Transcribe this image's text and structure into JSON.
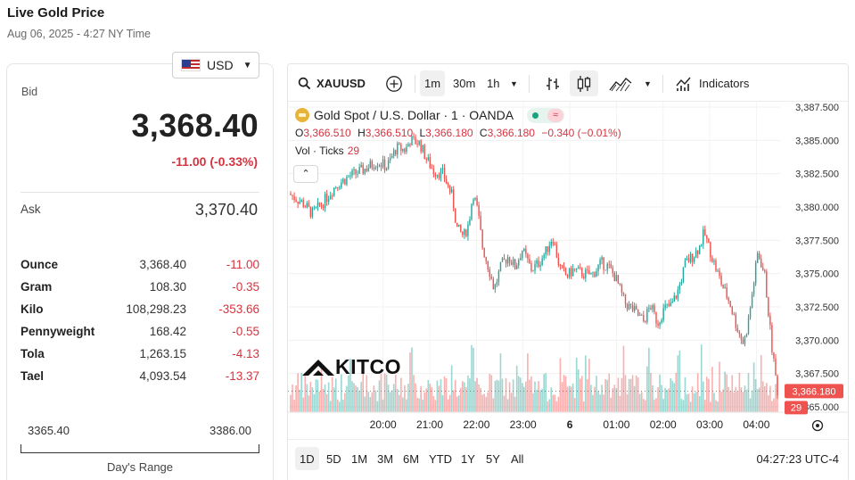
{
  "header": {
    "title": "Live Gold Price",
    "timestamp": "Aug 06, 2025 - 4:27 NY Time"
  },
  "currency": {
    "selected": "USD",
    "flag_icon": "us-flag-icon"
  },
  "quote": {
    "bid_label": "Bid",
    "bid": "3,368.40",
    "change": "-11.00 (-0.33%)",
    "ask_label": "Ask",
    "ask": "3,370.40"
  },
  "units": [
    {
      "name": "Ounce",
      "price": "3,368.40",
      "change": "-11.00"
    },
    {
      "name": "Gram",
      "price": "108.30",
      "change": "-0.35"
    },
    {
      "name": "Kilo",
      "price": "108,298.23",
      "change": "-353.66"
    },
    {
      "name": "Pennyweight",
      "price": "168.42",
      "change": "-0.55"
    },
    {
      "name": "Tola",
      "price": "1,263.15",
      "change": "-4.13"
    },
    {
      "name": "Tael",
      "price": "4,093.54",
      "change": "-13.37"
    }
  ],
  "day_range": {
    "low": "3365.40",
    "high": "3386.00",
    "label": "Day's Range"
  },
  "toolbar": {
    "symbol": "XAUUSD",
    "intervals": [
      "1m",
      "30m",
      "1h"
    ],
    "active_interval": "1m",
    "indicators_label": "Indicators"
  },
  "legend": {
    "title": "Gold Spot / U.S. Dollar · 1 · OANDA",
    "o_label": "O",
    "o": "3,366.510",
    "h_label": "H",
    "h": "3,366.510",
    "l_label": "L",
    "l": "3,366.180",
    "c_label": "C",
    "c": "3,366.180",
    "change": "−0.340 (−0.01%)",
    "vol_label": "Vol · Ticks",
    "vol_value": "29"
  },
  "brand": {
    "logo_text": "KITCO"
  },
  "range_buttons": [
    "1D",
    "5D",
    "1M",
    "3M",
    "6M",
    "YTD",
    "1Y",
    "5Y",
    "All"
  ],
  "active_range": "1D",
  "clock": "04:27:23 UTC-4",
  "chart_data": {
    "type": "candlestick",
    "title": "Gold Spot / U.S. Dollar · 1 · OANDA",
    "symbol": "XAUUSD",
    "xlabel": "",
    "ylabel": "",
    "ylim": [
      3364.6,
      3387.9
    ],
    "y_ticks": [
      "3,387.500",
      "3,385.000",
      "3,382.500",
      "3,380.000",
      "3,377.500",
      "3,375.000",
      "3,372.500",
      "3,370.000",
      "3,367.500",
      "3,365.000"
    ],
    "y_tick_values": [
      3387.5,
      3385.0,
      3382.5,
      3380.0,
      3377.5,
      3375.0,
      3372.5,
      3370.0,
      3367.5,
      3365.0
    ],
    "x_ticks": [
      "20:00",
      "21:00",
      "22:00",
      "23:00",
      "6",
      "01:00",
      "02:00",
      "03:00",
      "04:00"
    ],
    "x_tick_hours": [
      20,
      21,
      22,
      23,
      24,
      25,
      26,
      27,
      28
    ],
    "x_range_hours": [
      18.0,
      28.47
    ],
    "last_price": "3,366.180",
    "last_price_value": 3366.18,
    "last_volume": "29",
    "price_path": [
      [
        18.0,
        3381.0
      ],
      [
        18.3,
        3380.3
      ],
      [
        18.5,
        3379.5
      ],
      [
        18.7,
        3380.2
      ],
      [
        19.0,
        3381.6
      ],
      [
        19.3,
        3382.3
      ],
      [
        19.6,
        3382.8
      ],
      [
        19.9,
        3383.4
      ],
      [
        20.1,
        3383.0
      ],
      [
        20.3,
        3384.4
      ],
      [
        20.5,
        3384.3
      ],
      [
        20.6,
        3385.0
      ],
      [
        20.8,
        3384.8
      ],
      [
        20.95,
        3383.6
      ],
      [
        21.1,
        3382.7
      ],
      [
        21.3,
        3382.5
      ],
      [
        21.5,
        3380.8
      ],
      [
        21.6,
        3378.4
      ],
      [
        21.75,
        3377.8
      ],
      [
        21.85,
        3378.7
      ],
      [
        21.95,
        3381.1
      ],
      [
        22.05,
        3379.6
      ],
      [
        22.15,
        3377.0
      ],
      [
        22.3,
        3375.2
      ],
      [
        22.4,
        3373.8
      ],
      [
        22.55,
        3375.6
      ],
      [
        22.7,
        3376.3
      ],
      [
        22.85,
        3375.5
      ],
      [
        23.0,
        3376.8
      ],
      [
        23.2,
        3375.3
      ],
      [
        23.35,
        3375.8
      ],
      [
        23.5,
        3376.6
      ],
      [
        23.65,
        3377.8
      ],
      [
        23.8,
        3375.5
      ],
      [
        23.95,
        3374.8
      ],
      [
        24.1,
        3375.3
      ],
      [
        24.3,
        3375.0
      ],
      [
        24.5,
        3374.9
      ],
      [
        24.7,
        3375.8
      ],
      [
        24.85,
        3375.5
      ],
      [
        25.0,
        3374.7
      ],
      [
        25.2,
        3372.8
      ],
      [
        25.4,
        3372.2
      ],
      [
        25.6,
        3371.4
      ],
      [
        25.75,
        3372.6
      ],
      [
        25.9,
        3371.3
      ],
      [
        26.05,
        3372.4
      ],
      [
        26.2,
        3372.6
      ],
      [
        26.35,
        3373.8
      ],
      [
        26.5,
        3375.8
      ],
      [
        26.65,
        3376.3
      ],
      [
        26.8,
        3377.0
      ],
      [
        26.9,
        3378.1
      ],
      [
        27.0,
        3377.0
      ],
      [
        27.15,
        3375.4
      ],
      [
        27.3,
        3374.0
      ],
      [
        27.45,
        3372.8
      ],
      [
        27.6,
        3371.0
      ],
      [
        27.75,
        3369.7
      ],
      [
        27.85,
        3371.5
      ],
      [
        27.95,
        3374.0
      ],
      [
        28.05,
        3376.6
      ],
      [
        28.12,
        3375.8
      ],
      [
        28.2,
        3374.8
      ],
      [
        28.28,
        3372.0
      ],
      [
        28.35,
        3369.5
      ],
      [
        28.42,
        3367.6
      ],
      [
        28.47,
        3366.2
      ]
    ],
    "volume_scale": "ticks, relative 0-1"
  }
}
